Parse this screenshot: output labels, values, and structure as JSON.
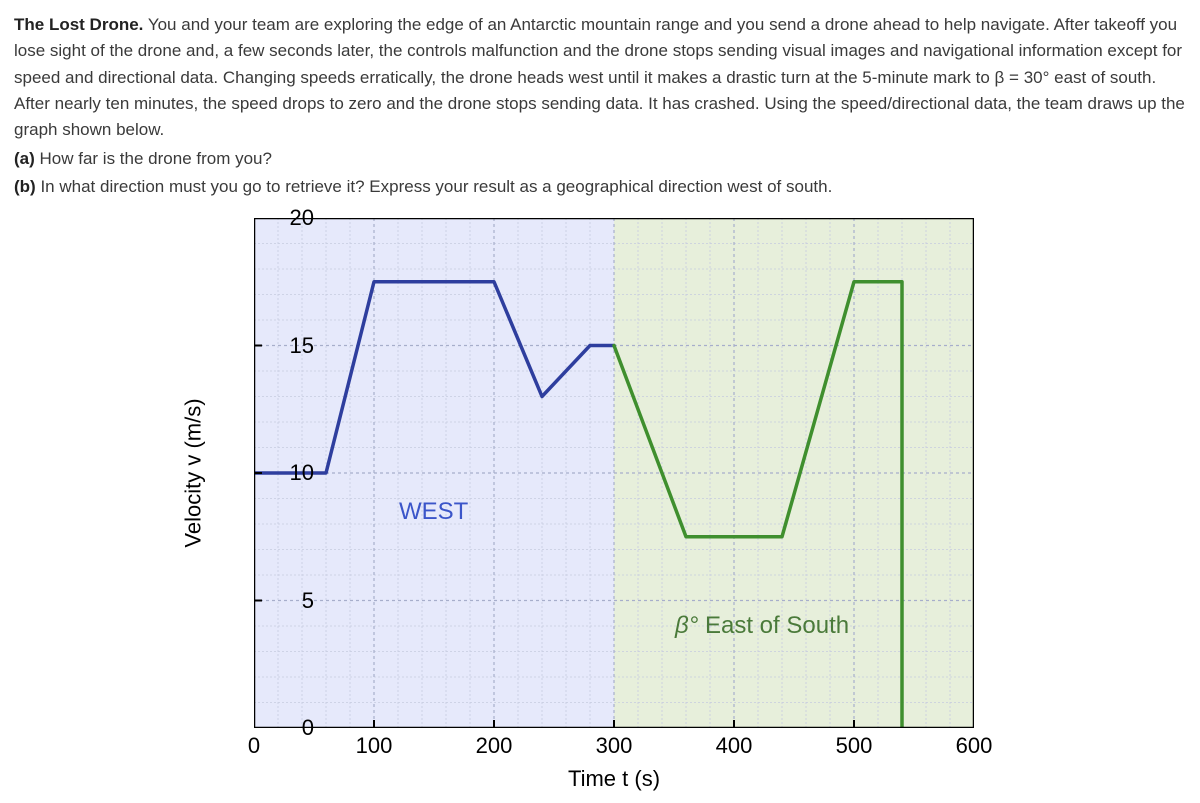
{
  "problem": {
    "title": "The Lost Drone.",
    "body": "You and your team are exploring the edge of an Antarctic mountain range and you send a drone ahead to help navigate. After takeoff you lose sight of the drone and, a few seconds later, the controls malfunction and the drone stops sending visual images and navigational information except for speed and directional data. Changing speeds erratically, the drone heads west until it makes a drastic turn at the 5-minute mark to β = 30° east of south. After nearly ten minutes, the speed drops to zero and the drone stops sending data. It has crashed. Using the speed/directional data, the team draws up the graph shown below.",
    "a_label": "(a)",
    "a_text": "How far is the drone from you?",
    "b_label": "(b)",
    "b_text": "In what direction must you go to retrieve it? Express your result as a geographical direction west of south."
  },
  "chart": {
    "type": "line",
    "y_label": "Velocity v (m/s)",
    "x_label": "Time t (s)",
    "xlim": [
      0,
      600
    ],
    "ylim": [
      0,
      20
    ],
    "x_ticks": [
      0,
      100,
      200,
      300,
      400,
      500,
      600
    ],
    "y_ticks": [
      0,
      5,
      10,
      15,
      20
    ],
    "minor_x_step": 20,
    "minor_y_step": 1,
    "frame_color": "#000000",
    "frame_width": 2.5,
    "major_grid_color": "#a7aecb",
    "minor_grid_color": "#c6cbe0",
    "tick_fontsize": 22,
    "label_fontsize": 22,
    "regions": {
      "west": {
        "t_start": 0,
        "t_end": 300,
        "fill": "#e6e9fb",
        "label": "WEST",
        "label_color": "#3b55c9",
        "label_pos_t": 150,
        "label_pos_v": 8.5,
        "line_color": "#2e3e9e",
        "line_width": 3.5,
        "points_tv": [
          [
            0,
            10
          ],
          [
            60,
            10
          ],
          [
            100,
            17.5
          ],
          [
            200,
            17.5
          ],
          [
            240,
            13
          ],
          [
            280,
            15
          ],
          [
            300,
            15
          ]
        ]
      },
      "east_of_south": {
        "t_start": 300,
        "t_end": 600,
        "fill": "#e7efdb",
        "label_html": "β° East of South",
        "label_color": "#4a7a3a",
        "label_pos_t": 430,
        "label_pos_v": 4,
        "line_color": "#3f8f2e",
        "line_width": 3.5,
        "points_tv": [
          [
            300,
            15
          ],
          [
            360,
            7.5
          ],
          [
            440,
            7.5
          ],
          [
            500,
            17.5
          ],
          [
            540,
            17.5
          ],
          [
            540,
            0
          ]
        ]
      }
    }
  }
}
